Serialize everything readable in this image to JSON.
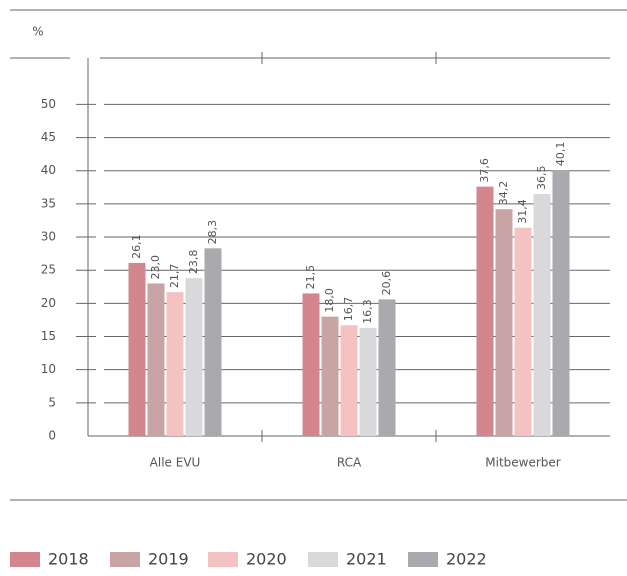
{
  "chart_data": {
    "type": "bar",
    "y_label": "%",
    "categories": [
      "Alle EVU",
      "RCA",
      "Mitbewerber"
    ],
    "series": [
      {
        "name": "2018",
        "color": "#d4868e",
        "values": [
          26.1,
          21.5,
          37.6
        ],
        "value_labels": [
          "26,1",
          "21,5",
          "37,6"
        ]
      },
      {
        "name": "2019",
        "color": "#c9a4a4",
        "values": [
          23.0,
          18.0,
          34.2
        ],
        "value_labels": [
          "23,0",
          "18,0",
          "34,2"
        ]
      },
      {
        "name": "2020",
        "color": "#f5c2c2",
        "values": [
          21.7,
          16.7,
          31.4
        ],
        "value_labels": [
          "21,7",
          "16,7",
          "31,4"
        ]
      },
      {
        "name": "2021",
        "color": "#d9d9db",
        "values": [
          23.8,
          16.3,
          36.5
        ],
        "value_labels": [
          "23,8",
          "16,3",
          "36,5"
        ]
      },
      {
        "name": "2022",
        "color": "#a9a9ae",
        "values": [
          28.3,
          20.6,
          40.1
        ],
        "value_labels": [
          "28,3",
          "20,6",
          "40,1"
        ]
      }
    ],
    "ylim": [
      0,
      57
    ],
    "yticks": [
      0,
      5,
      10,
      15,
      20,
      25,
      30,
      35,
      40,
      45,
      50
    ],
    "grid": true,
    "legend": "bottom"
  }
}
